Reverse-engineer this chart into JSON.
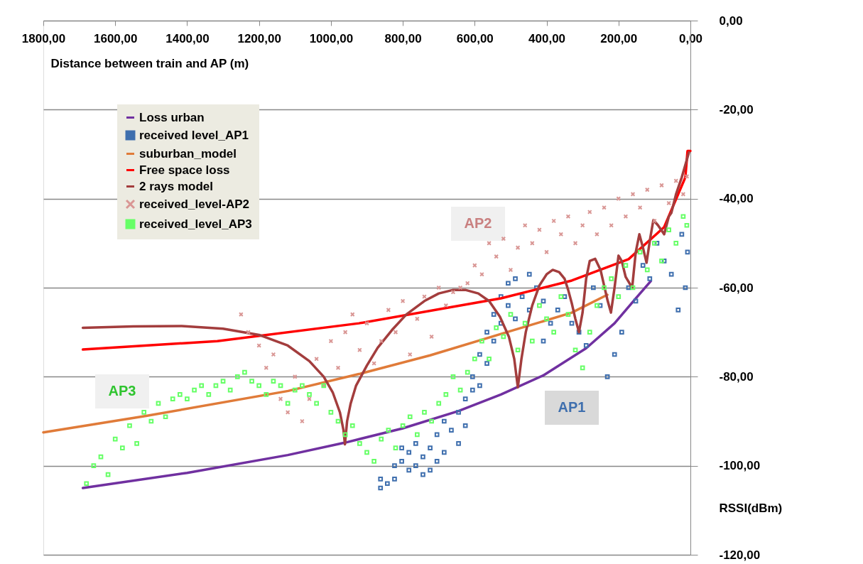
{
  "chart_data": {
    "type": "line",
    "xlabel": "Distance between train and AP (m)",
    "ylabel": "RSSI(dBm)",
    "xlim": [
      1800,
      0
    ],
    "ylim": [
      -120,
      0
    ],
    "xticks": [
      {
        "value": 1800,
        "label": "1800,00"
      },
      {
        "value": 1600,
        "label": "1600,00"
      },
      {
        "value": 1400,
        "label": "1400,00"
      },
      {
        "value": 1200,
        "label": "1200,00"
      },
      {
        "value": 1000,
        "label": "1000,00"
      },
      {
        "value": 800,
        "label": "800,00"
      },
      {
        "value": 600,
        "label": "600,00"
      },
      {
        "value": 400,
        "label": "400,00"
      },
      {
        "value": 200,
        "label": "200,00"
      },
      {
        "value": 0,
        "label": "0,00"
      }
    ],
    "yticks": [
      {
        "value": 0,
        "label": "0,00"
      },
      {
        "value": -20,
        "label": "-20,00"
      },
      {
        "value": -40,
        "label": "-40,00"
      },
      {
        "value": -60,
        "label": "-60,00"
      },
      {
        "value": -80,
        "label": "-80,00"
      },
      {
        "value": -100,
        "label": "-100,00"
      },
      {
        "value": -120,
        "label": "-120,00"
      }
    ],
    "grid": "y",
    "legend": "top left",
    "annotations": [
      "AP3",
      "AP2",
      "AP1"
    ],
    "series": [
      {
        "name": "Loss urban",
        "marker": "none",
        "color": "#7030a0",
        "x": [
          1690,
          1400,
          1120,
          960,
          800,
          645,
          527,
          409,
          290,
          211,
          152,
          110
        ],
        "values": [
          -105,
          -101.6,
          -97.6,
          -94.8,
          -91.6,
          -87.7,
          -84,
          -79.7,
          -73.6,
          -68,
          -62.4,
          -58.5
        ]
      },
      {
        "name": "received level_AP1",
        "type": "scatter",
        "marker": "square",
        "color": "#3f6fae",
        "x": [
          862,
          862,
          843,
          823,
          823,
          803,
          803,
          783,
          783,
          764,
          764,
          744,
          744,
          724,
          724,
          705,
          705,
          685,
          685,
          665,
          645,
          645,
          626,
          626,
          606,
          606,
          586,
          586,
          566,
          566,
          547,
          547,
          527,
          527,
          507,
          507,
          487,
          487,
          468,
          448,
          448,
          428,
          409,
          409,
          389,
          369,
          350,
          330,
          310,
          290,
          270,
          251,
          231,
          211,
          191,
          172,
          152,
          132,
          113,
          93,
          73,
          53,
          34,
          24,
          14,
          8
        ],
        "values": [
          -105,
          -103,
          -104,
          -100,
          -103,
          -99,
          -96,
          -101,
          -97,
          -100,
          -95,
          -102,
          -98,
          -96,
          -101,
          -99,
          -93,
          -97,
          -90,
          -92,
          -88,
          -95,
          -85,
          -91,
          -83,
          -80,
          -75,
          -82,
          -77,
          -70,
          -72,
          -66,
          -68,
          -62,
          -59,
          -64,
          -58,
          -67,
          -62,
          -57,
          -65,
          -60,
          -63,
          -72,
          -68,
          -65,
          -62,
          -68,
          -70,
          -73,
          -60,
          -64,
          -80,
          -75,
          -70,
          -60,
          -63,
          -55,
          -58,
          -50,
          -54,
          -57,
          -65,
          -48,
          -60,
          -52
        ]
      },
      {
        "name": "suburban_model",
        "marker": "none",
        "color": "#e07b39",
        "x": [
          1800,
          1514,
          1119,
          922,
          724,
          527,
          330,
          231
        ],
        "values": [
          -92.5,
          -88.8,
          -83.2,
          -79.4,
          -75.2,
          -70.4,
          -65.6,
          -61.6
        ]
      },
      {
        "name": "Free space loss",
        "marker": "none",
        "color": "#ff0000",
        "x": [
          1690,
          1316,
          922,
          527,
          330,
          172,
          73,
          14,
          8,
          0
        ],
        "values": [
          -73.9,
          -72,
          -68,
          -62.4,
          -58.4,
          -53.6,
          -46.4,
          -35.2,
          -29.3,
          -29.3
        ]
      },
      {
        "name": "2 rays model",
        "marker": "none",
        "color": "#a33d3d",
        "x": [
          1690,
          1550,
          1415,
          1300,
          1200,
          1120,
          1060,
          1020,
          995,
          975,
          965,
          961,
          955,
          945,
          930,
          900,
          870,
          830,
          790,
          740,
          700,
          660,
          626,
          590,
          560,
          530,
          505,
          490,
          480,
          470,
          458,
          440,
          420,
          400,
          383,
          365,
          350,
          340,
          330,
          320,
          310,
          300,
          290,
          280,
          265,
          250,
          241,
          230,
          221,
          211,
          200,
          191,
          180,
          162,
          152,
          142,
          132,
          122,
          112,
          103,
          90,
          73,
          60,
          53,
          40,
          24,
          4
        ],
        "values": [
          -69,
          -68.7,
          -68.6,
          -69.2,
          -70.6,
          -73,
          -76.5,
          -80,
          -83.5,
          -88,
          -92,
          -95.2,
          -90,
          -86,
          -82,
          -77.5,
          -73.5,
          -69.5,
          -66,
          -63,
          -61.3,
          -60.5,
          -60.5,
          -61.3,
          -63,
          -66.5,
          -71,
          -76,
          -82.4,
          -76,
          -70,
          -64,
          -59.5,
          -57,
          -56,
          -56.5,
          -58,
          -60.5,
          -63.5,
          -67,
          -70,
          -65.6,
          -58,
          -54,
          -53.5,
          -56,
          -59.2,
          -63,
          -65.6,
          -60,
          -52.8,
          -54,
          -57.6,
          -60,
          -52,
          -48,
          -51,
          -54.4,
          -49,
          -44.8,
          -46,
          -48,
          -44,
          -43.2,
          -39,
          -35.2,
          -29.6
        ]
      },
      {
        "name": "received_level-AP2",
        "type": "scatter",
        "marker": "cross",
        "color": "#d99694",
        "x": [
          1250,
          1230,
          1200,
          1180,
          1160,
          1140,
          1120,
          1100,
          1080,
          1060,
          1040,
          1020,
          1000,
          980,
          960,
          940,
          920,
          900,
          880,
          860,
          840,
          820,
          800,
          780,
          760,
          740,
          720,
          700,
          680,
          660,
          640,
          620,
          600,
          580,
          560,
          540,
          520,
          500,
          480,
          460,
          440,
          420,
          400,
          380,
          360,
          340,
          320,
          300,
          280,
          260,
          240,
          220,
          200,
          180,
          160,
          140,
          120,
          100,
          80,
          60,
          40,
          20,
          10
        ],
        "values": [
          -66,
          -70,
          -73,
          -78,
          -75,
          -85,
          -88,
          -80,
          -90,
          -85,
          -76,
          -82,
          -72,
          -78,
          -70,
          -66,
          -74,
          -68,
          -77,
          -72,
          -65,
          -70,
          -63,
          -75,
          -67,
          -62,
          -71,
          -60,
          -64,
          -61,
          -60,
          -59,
          -55,
          -57,
          -50,
          -53,
          -49,
          -56,
          -51,
          -46,
          -50,
          -47,
          -52,
          -45,
          -48,
          -44,
          -50,
          -46,
          -43,
          -48,
          -42,
          -46,
          -40,
          -44,
          -39,
          -42,
          -38,
          -45,
          -37,
          -41,
          -36,
          -39,
          -35
        ]
      },
      {
        "name": "received_level_AP3",
        "type": "scatter",
        "marker": "square",
        "color": "#66ff66",
        "x": [
          1680,
          1660,
          1640,
          1620,
          1600,
          1580,
          1560,
          1540,
          1520,
          1500,
          1480,
          1460,
          1440,
          1420,
          1400,
          1380,
          1360,
          1340,
          1320,
          1300,
          1280,
          1260,
          1240,
          1220,
          1200,
          1180,
          1160,
          1140,
          1120,
          1100,
          1080,
          1060,
          1040,
          1020,
          1000,
          980,
          960,
          940,
          920,
          900,
          880,
          860,
          840,
          820,
          800,
          780,
          760,
          740,
          720,
          700,
          680,
          660,
          640,
          620,
          600,
          580,
          560,
          540,
          520,
          500,
          480,
          460,
          440,
          420,
          400,
          380,
          360,
          340,
          320,
          300,
          280,
          260,
          240,
          220,
          200,
          180,
          160,
          140,
          120,
          100,
          80,
          60,
          40,
          20,
          10
        ],
        "values": [
          -104,
          -100,
          -98,
          -102,
          -94,
          -96,
          -91,
          -95,
          -88,
          -90,
          -86,
          -89,
          -85,
          -84,
          -85,
          -83,
          -82,
          -84,
          -82,
          -81,
          -83,
          -80,
          -79,
          -81,
          -82,
          -84,
          -81,
          -82,
          -86,
          -83,
          -82,
          -84,
          -86,
          -82,
          -88,
          -90,
          -93,
          -91,
          -95,
          -97,
          -99,
          -94,
          -92,
          -96,
          -91,
          -89,
          -93,
          -88,
          -90,
          -86,
          -84,
          -80,
          -83,
          -79,
          -76,
          -72,
          -76,
          -69,
          -71,
          -66,
          -74,
          -68,
          -72,
          -64,
          -67,
          -70,
          -62,
          -66,
          -74,
          -78,
          -70,
          -64,
          -60,
          -58,
          -62,
          -55,
          -60,
          -52,
          -56,
          -50,
          -54,
          -47,
          -50,
          -44,
          -46
        ]
      }
    ]
  }
}
